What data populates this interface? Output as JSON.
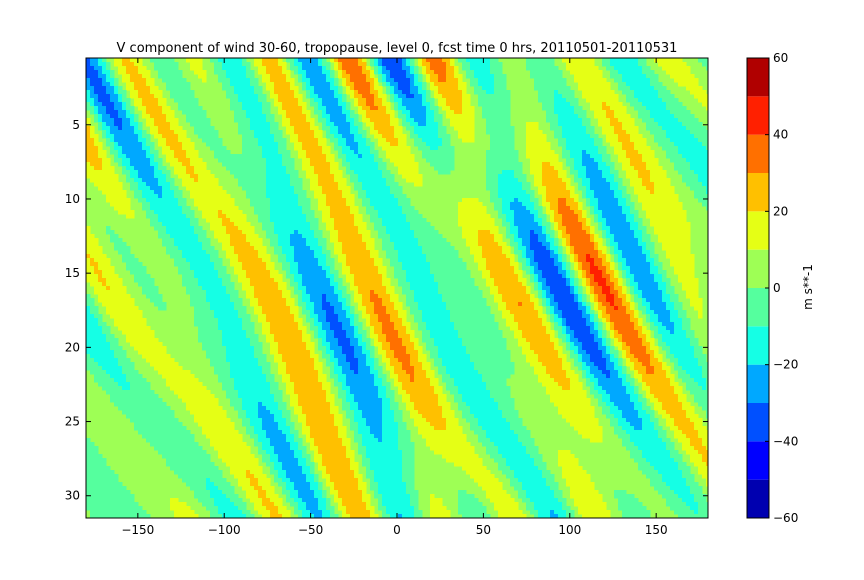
{
  "chart_data": {
    "type": "heatmap",
    "title": "V component of wind 30-60, tropopause, level 0, fcst time 0 hrs, 20110501-20110531",
    "xlabel": "",
    "ylabel": "",
    "xlim": [
      -180,
      180
    ],
    "ylim": [
      31.5,
      0.5
    ],
    "x_ticks": [
      -150,
      -100,
      -50,
      0,
      50,
      100,
      150
    ],
    "x_tick_labels": [
      "−150",
      "−100",
      "−50",
      "0",
      "50",
      "100",
      "150"
    ],
    "y_ticks": [
      5,
      10,
      15,
      20,
      25,
      30
    ],
    "y_tick_labels": [
      "5",
      "10",
      "15",
      "20",
      "25",
      "30"
    ],
    "grid": false,
    "colorbar": {
      "label": "m s**-1",
      "levels": [
        -60,
        -50,
        -40,
        -30,
        -20,
        -10,
        0,
        10,
        20,
        30,
        40,
        50,
        60
      ],
      "tick_values": [
        -60,
        -40,
        -20,
        0,
        20,
        40,
        60
      ],
      "tick_labels": [
        "−60",
        "−40",
        "−20",
        "0",
        "20",
        "40",
        "60"
      ],
      "colors": [
        "#0000b0",
        "#0000ff",
        "#0050ff",
        "#00a8ff",
        "#15ffe5",
        "#55ff9e",
        "#9eff55",
        "#e5ff15",
        "#ffc000",
        "#ff7000",
        "#ff2000",
        "#b00000"
      ]
    }
  }
}
